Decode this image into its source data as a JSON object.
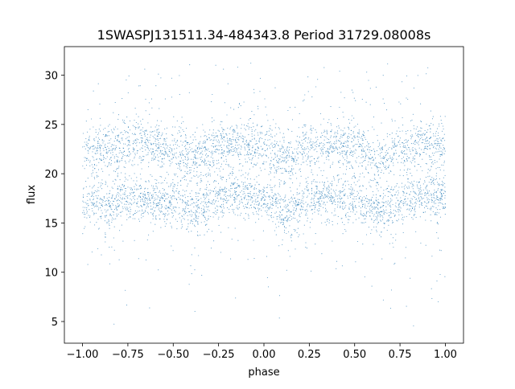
{
  "chart_data": {
    "type": "scatter",
    "title": "1SWASPJ131511.34-484343.8 Period 31729.08008s",
    "xlabel": "phase",
    "ylabel": "flux",
    "xlim": [
      -1.1,
      1.1
    ],
    "ylim": [
      2.8,
      32.9
    ],
    "xticks": [
      -1.0,
      -0.75,
      -0.5,
      -0.25,
      0.0,
      0.25,
      0.5,
      0.75,
      1.0
    ],
    "xtick_labels": [
      "−1.00",
      "−0.75",
      "−0.50",
      "−0.25",
      "0.00",
      "0.25",
      "0.50",
      "0.75",
      "1.00"
    ],
    "yticks": [
      5,
      10,
      15,
      20,
      25,
      30
    ],
    "ytick_labels": [
      "5",
      "10",
      "15",
      "20",
      "25",
      "30"
    ],
    "grid": false,
    "legend": "none",
    "marker_color": "#1f77b4",
    "series": [
      {
        "phase": [
          -1.0,
          -0.875,
          -0.75,
          -0.625,
          -0.5,
          -0.375,
          -0.25,
          -0.125,
          0.0,
          0.125,
          0.25,
          0.375,
          0.5,
          0.625,
          0.75,
          0.875,
          1.0
        ],
        "flux_median": [
          17.0,
          16.9,
          17.6,
          17.4,
          17.1,
          16.2,
          17.6,
          17.9,
          17.4,
          16.0,
          17.5,
          17.8,
          17.3,
          16.2,
          17.3,
          17.7,
          17.5
        ],
        "flux_spread": 1.1
      },
      {
        "phase": [
          -1.0,
          -0.875,
          -0.75,
          -0.625,
          -0.5,
          -0.375,
          -0.25,
          -0.125,
          0.0,
          0.125,
          0.25,
          0.375,
          0.5,
          0.625,
          0.75,
          0.875,
          1.0
        ],
        "flux_median": [
          22.4,
          22.3,
          23.0,
          23.1,
          22.2,
          21.3,
          22.6,
          23.2,
          22.7,
          21.5,
          22.8,
          23.2,
          22.6,
          21.3,
          22.6,
          23.0,
          22.7
        ],
        "flux_spread": 1.2
      }
    ]
  }
}
